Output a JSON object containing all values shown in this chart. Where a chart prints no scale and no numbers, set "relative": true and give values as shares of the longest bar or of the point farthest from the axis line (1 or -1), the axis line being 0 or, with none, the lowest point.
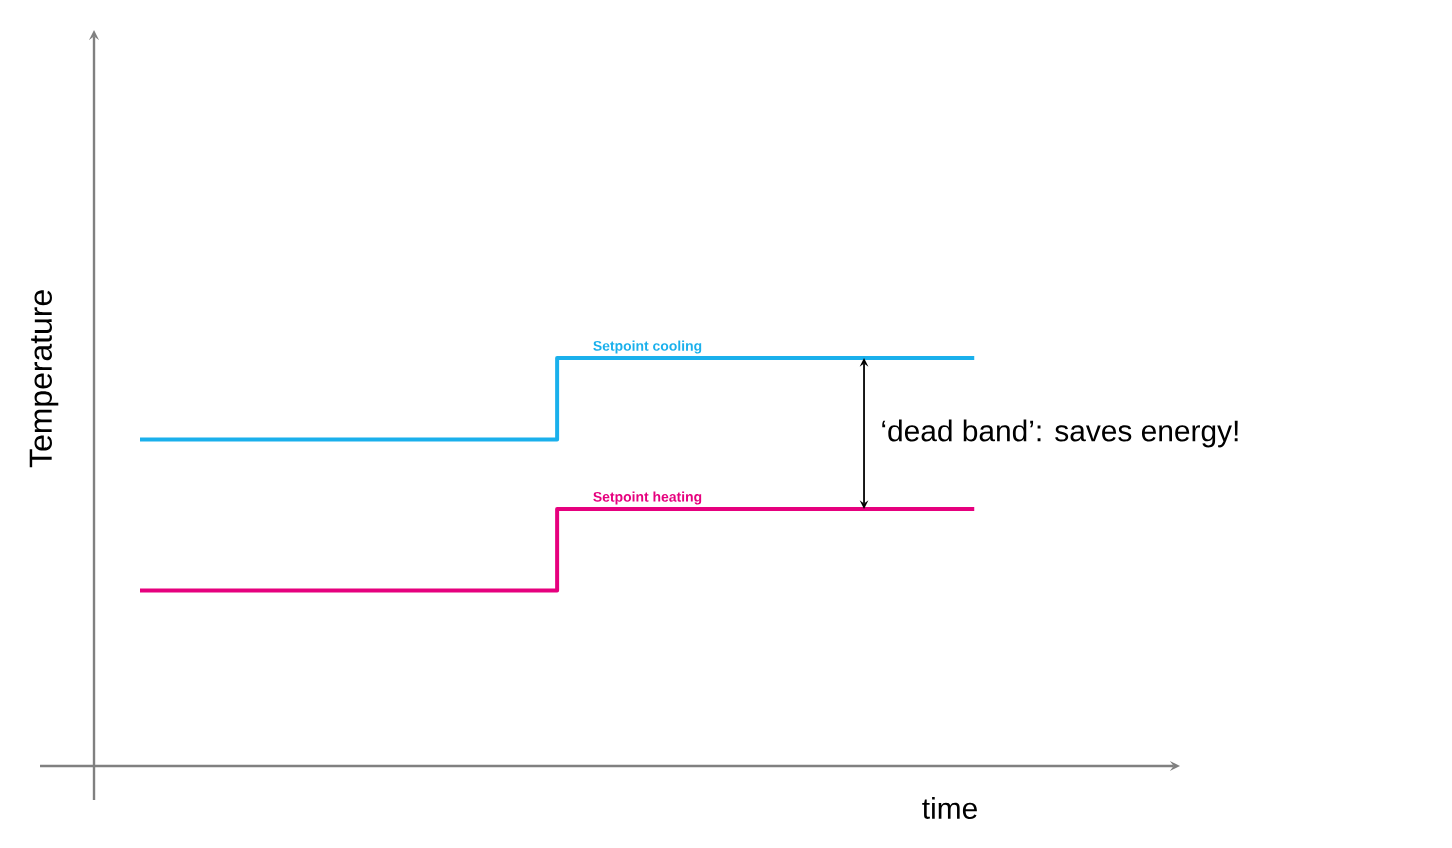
{
  "chart_data": {
    "type": "step",
    "relative": true,
    "xlabel": "time",
    "ylabel": "Temperature",
    "categories": [
      null,
      null,
      null,
      null,
      null,
      null,
      null,
      null,
      null,
      null,
      null,
      null,
      null
    ],
    "series": [
      {
        "name": "Setpoint cooling",
        "color": "#1ab0ec",
        "values": [
          0.8,
          0.8,
          0.8,
          0.8,
          0.8,
          0.8,
          1.0,
          1.0,
          1.0,
          1.0,
          1.0,
          1.0,
          1.0
        ]
      },
      {
        "name": "Setpoint heating",
        "color": "#e6007e",
        "values": [
          0.43,
          0.43,
          0.43,
          0.43,
          0.43,
          0.43,
          0.63,
          0.63,
          0.63,
          0.63,
          0.63,
          0.63,
          0.63
        ]
      }
    ],
    "annotations": [
      "‘dead band’: saves energy!"
    ]
  }
}
